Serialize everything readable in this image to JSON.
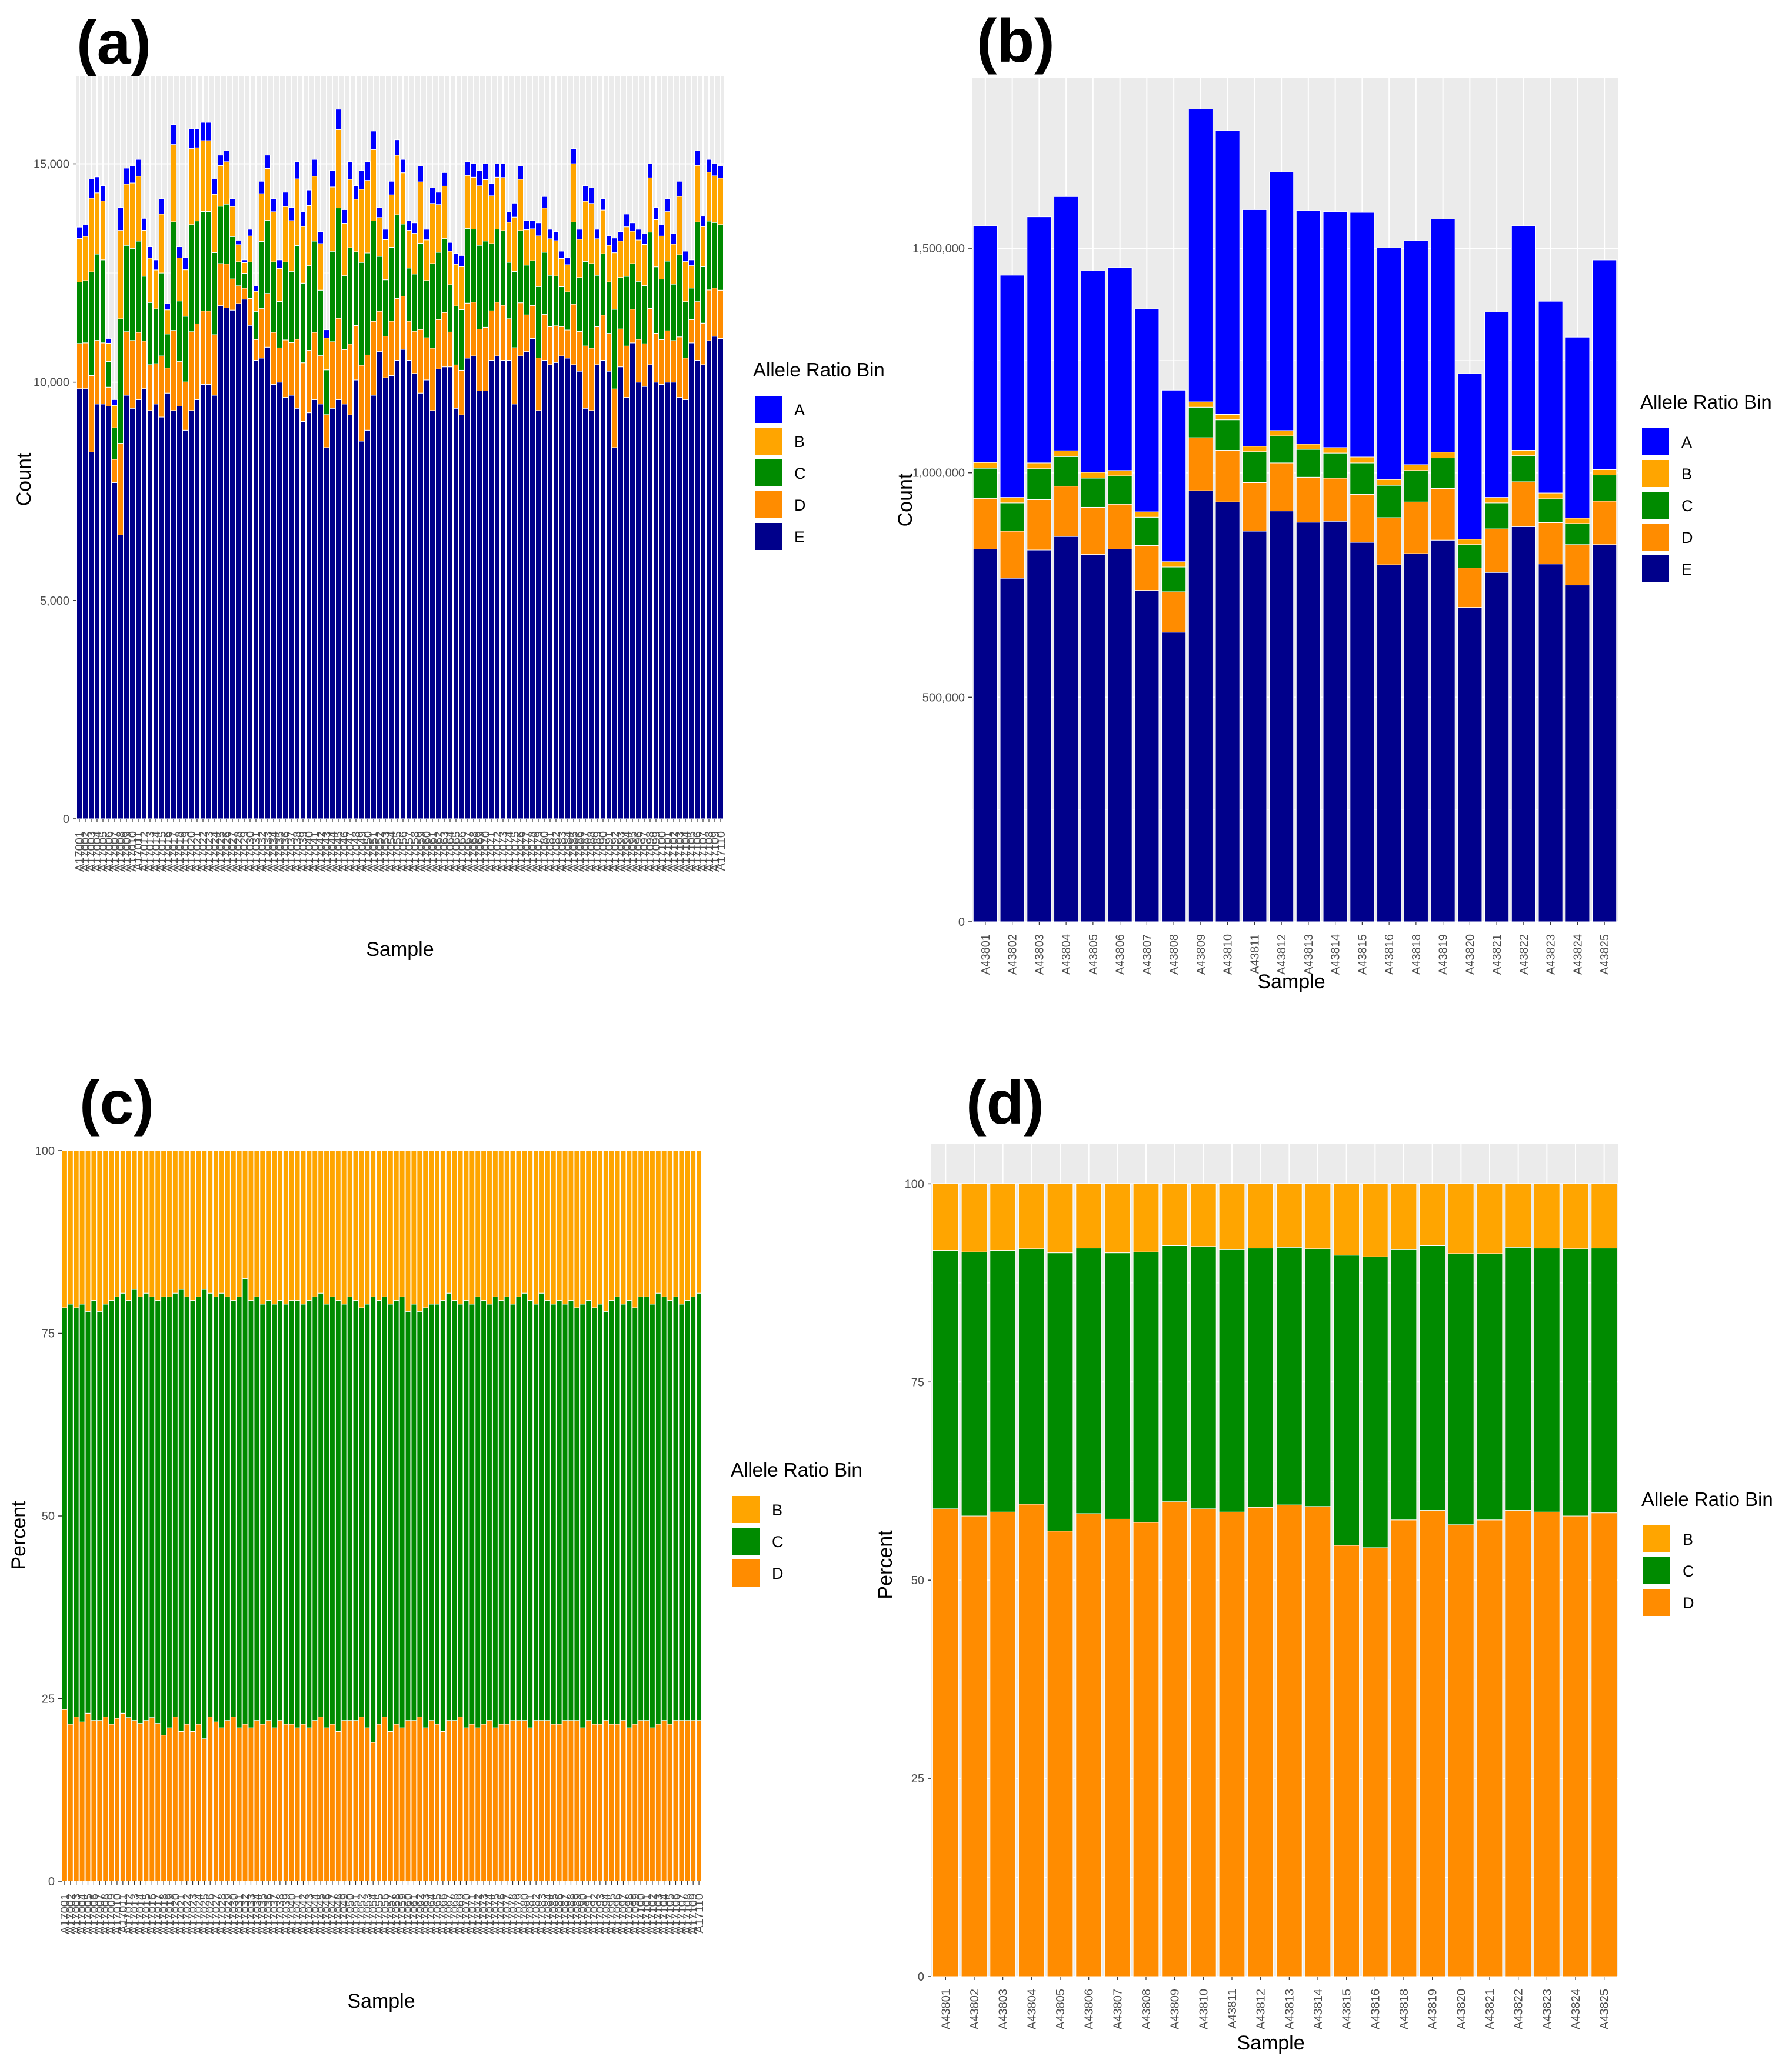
{
  "figure": {
    "colors": {
      "A": "#0000ff",
      "B": "#ffa500",
      "C": "#008b00",
      "D": "#ff8c00",
      "E": "#00008b"
    }
  },
  "chart_data": [
    {
      "id": "a",
      "panel_label": "(a)",
      "type": "bar",
      "stacked": true,
      "xlabel": "Sample",
      "ylabel": "Count",
      "ylim": [
        0,
        17000
      ],
      "yticks": [
        0,
        5000,
        10000,
        15000
      ],
      "ytick_labels": [
        "0",
        "5,000",
        "10,000",
        "15,000"
      ],
      "legend_title": "Allele Ratio Bin",
      "legend": [
        "A",
        "B",
        "C",
        "D",
        "E"
      ],
      "n_samples": 110,
      "series_order": [
        "E",
        "D",
        "C",
        "B",
        "A"
      ],
      "totals": [
        13550,
        13600,
        14650,
        14700,
        14500,
        11000,
        9600,
        14000,
        14900,
        14950,
        15100,
        13750,
        13100,
        12800,
        14200,
        11800,
        15900,
        13100,
        12850,
        15800,
        15800,
        15950,
        15950,
        14650,
        15200,
        15300,
        14200,
        13250,
        12800,
        13500,
        12200,
        14600,
        15200,
        14200,
        12800,
        14350,
        14000,
        15050,
        13900,
        14400,
        15100,
        13450,
        11200,
        14850,
        16250,
        13950,
        15050,
        14500,
        14850,
        15050,
        15750,
        14000,
        13500,
        14600,
        15550,
        15100,
        13700,
        13650,
        14950,
        13500,
        14450,
        14350,
        14800,
        13200,
        12950,
        12900,
        15050,
        15000,
        14850,
        15000,
        14550,
        15000,
        15000,
        13900,
        14100,
        14950,
        13700,
        13700,
        13650,
        14250,
        13500,
        13450,
        13000,
        12850,
        15350,
        13500,
        14500,
        14450,
        13500,
        14200,
        13350,
        13300,
        13450,
        13850,
        13650,
        13500,
        13400,
        15000,
        14000,
        13600,
        14200,
        13400,
        14600,
        13000,
        12800,
        15300,
        13800,
        15100,
        15000,
        14950
      ],
      "e_values": [
        9850,
        9850,
        8400,
        9500,
        9500,
        9450,
        7700,
        6500,
        9700,
        9400,
        9600,
        9850,
        9350,
        9500,
        9200,
        9750,
        9350,
        9450,
        8900,
        9350,
        9600,
        9950,
        9950,
        9700,
        11750,
        11700,
        11650,
        11800,
        11900,
        11300,
        10500,
        10550,
        10800,
        9950,
        10000,
        9650,
        9700,
        9400,
        9100,
        9300,
        9600,
        9500,
        8500,
        9400,
        9600,
        9500,
        9250,
        10050,
        8650,
        8900,
        9700,
        10700,
        10100,
        10150,
        10500,
        10750,
        10500,
        10200,
        9750,
        10050,
        9350,
        10300,
        10350,
        10350,
        9400,
        9250,
        10550,
        10600,
        9800,
        9800,
        10500,
        10600,
        10500,
        10500,
        9500,
        10600,
        10700,
        11000,
        9350,
        10500,
        10400,
        10450,
        10600,
        10550,
        10400,
        10250,
        9400,
        9350,
        10400,
        10500,
        10250,
        8500,
        10350,
        9650,
        10900,
        10000,
        9900,
        10400,
        10000,
        9950,
        10000,
        10000,
        9650,
        9600,
        10900,
        10500,
        10400,
        10950,
        11050,
        11000
      ],
      "categories": [
        "A17001",
        "A17002",
        "A17003",
        "A17004",
        "A17005",
        "A17006",
        "A17007",
        "A17008",
        "A17009",
        "A17010",
        "A17011",
        "A17012",
        "A17013",
        "A17014",
        "A17015",
        "A17016",
        "A17017",
        "A17018",
        "A17019",
        "A17020",
        "A17021",
        "A17022",
        "A17023",
        "A17024",
        "A17025",
        "A17026",
        "A17027",
        "A17028",
        "A17029",
        "A17030",
        "A17031",
        "A17032",
        "A17033",
        "A17034",
        "A17035",
        "A17036",
        "A17037",
        "A17038",
        "A17039",
        "A17040",
        "A17041",
        "A17042",
        "A17043",
        "A17044",
        "A17045",
        "A17046",
        "A17047",
        "A17048",
        "A17049",
        "A17050",
        "A17051",
        "A17052",
        "A17053",
        "A17054",
        "A17055",
        "A17056",
        "A17057",
        "A17058",
        "A17059",
        "A17060",
        "A17061",
        "A17062",
        "A17063",
        "A17064",
        "A17065",
        "A17066",
        "A17067",
        "A17068",
        "A17069",
        "A17070",
        "A17071",
        "A17072",
        "A17073",
        "A17074",
        "A17075",
        "A17076",
        "A17077",
        "A17078",
        "A17079",
        "A17080",
        "A17081",
        "A17082",
        "A17083",
        "A17084",
        "A17085",
        "A17086",
        "A17087",
        "A17088",
        "A17089",
        "A17090",
        "A17091",
        "A17092",
        "A17093",
        "A17094",
        "A17095",
        "A17096",
        "A17097",
        "A17098",
        "A17099",
        "A17100",
        "A17101",
        "A17102",
        "A17103",
        "A17104",
        "A17105",
        "A17106",
        "A17107",
        "A17108",
        "A17109",
        "A17110"
      ]
    },
    {
      "id": "b",
      "panel_label": "(b)",
      "type": "bar",
      "stacked": true,
      "xlabel": "Sample",
      "ylabel": "Count",
      "ylim": [
        0,
        1880000
      ],
      "yticks": [
        0,
        500000,
        1000000,
        1500000
      ],
      "ytick_labels": [
        "0",
        "500,000",
        "1,000,000",
        "1,500,000"
      ],
      "legend_title": "Allele Ratio Bin",
      "legend": [
        "A",
        "B",
        "C",
        "D",
        "E"
      ],
      "categories": [
        "A43801",
        "A43802",
        "A43803",
        "A43804",
        "A43805",
        "A43806",
        "A43807",
        "A43808",
        "A43809",
        "A43810",
        "A43811",
        "A43812",
        "A43813",
        "A43814",
        "A43815",
        "A43816",
        "A43818",
        "A43819",
        "A43820",
        "A43821",
        "A43822",
        "A43823",
        "A43824",
        "A43825"
      ],
      "series": [
        {
          "name": "E",
          "values": [
            830000,
            765000,
            828000,
            858000,
            818000,
            830000,
            738000,
            645000,
            960000,
            935000,
            870000,
            915000,
            890000,
            892000,
            845000,
            795000,
            820000,
            850000,
            700000,
            778000,
            880000,
            797000,
            750000,
            840000
          ]
        },
        {
          "name": "D",
          "values": [
            113000,
            105000,
            112000,
            112000,
            105000,
            100000,
            100000,
            90000,
            118000,
            115000,
            108000,
            107000,
            100000,
            96000,
            107000,
            105000,
            115000,
            115000,
            88000,
            97000,
            100000,
            92000,
            90000,
            97000
          ]
        },
        {
          "name": "C",
          "values": [
            67000,
            63000,
            69000,
            66000,
            65000,
            63000,
            63000,
            55000,
            68000,
            68000,
            69000,
            60000,
            62000,
            56000,
            70000,
            72000,
            70000,
            68000,
            52000,
            58000,
            58000,
            53000,
            47000,
            58000
          ]
        },
        {
          "name": "B",
          "values": [
            13000,
            12000,
            13000,
            13000,
            13000,
            12000,
            12000,
            12000,
            12000,
            12000,
            12000,
            12000,
            12000,
            12000,
            13000,
            13000,
            13000,
            13000,
            12000,
            12000,
            12000,
            13000,
            12000,
            12000
          ]
        },
        {
          "name": "A",
          "values": [
            527000,
            495000,
            548000,
            566000,
            449000,
            452000,
            452000,
            382000,
            652000,
            632000,
            527000,
            576000,
            520000,
            526000,
            545000,
            516000,
            499000,
            519000,
            369000,
            413000,
            500000,
            427000,
            403000,
            467000
          ]
        }
      ]
    },
    {
      "id": "c",
      "panel_label": "(c)",
      "type": "bar",
      "stacked": true,
      "xlabel": "Sample",
      "ylabel": "Percent",
      "ylim": [
        0,
        100
      ],
      "yticks": [
        0,
        25,
        50,
        75,
        100
      ],
      "ytick_labels": [
        "0",
        "25",
        "50",
        "75",
        "100"
      ],
      "legend_title": "Allele Ratio Bin",
      "legend": [
        "B",
        "C",
        "D"
      ],
      "n_samples": 110,
      "series_order": [
        "D",
        "C",
        "B"
      ],
      "d_values": [
        23.5,
        21.5,
        22.5,
        21.8,
        23.0,
        22.0,
        22.0,
        22.5,
        21.5,
        22.3,
        23.0,
        22.4,
        22.0,
        21.6,
        22.0,
        22.4,
        21.6,
        20.0,
        21.0,
        22.5,
        20.5,
        21.5,
        20.5,
        21.5,
        19.5,
        22.5,
        21.8,
        21.0,
        22.0,
        22.5,
        21.0,
        21.5,
        21.0,
        22.0,
        21.5,
        22.0,
        21.0,
        22.0,
        21.5,
        21.5,
        21.0,
        21.5,
        21.0,
        22.0,
        22.5,
        21.0,
        21.5,
        20.5,
        22.0,
        22.0,
        22.0,
        22.5,
        21.0,
        19.0,
        21.5,
        22.5,
        20.5,
        21.5,
        21.0,
        22.0,
        22.0,
        22.5,
        21.0,
        22.0,
        21.5,
        20.5,
        22.0,
        22.0,
        22.5,
        21.0,
        21.5,
        21.0,
        21.5,
        22.0,
        21.0,
        21.5,
        21.5,
        22.0,
        22.0,
        22.0,
        21.0,
        22.0,
        22.0,
        22.0,
        21.5,
        21.5,
        22.0,
        22.0,
        22.0,
        21.0,
        22.0,
        21.5,
        21.5,
        22.0,
        21.5,
        21.5,
        22.0,
        21.0,
        21.5,
        22.0,
        22.0,
        21.0,
        21.5,
        22.0,
        21.5,
        22.0,
        22.0,
        22.0,
        22.0,
        22.0
      ],
      "cd_values": [
        78.5,
        79.0,
        78.5,
        79.0,
        78.0,
        79.5,
        78.0,
        79.0,
        79.5,
        80.0,
        80.5,
        79.5,
        81.0,
        80.0,
        80.5,
        80.0,
        79.5,
        80.0,
        80.0,
        80.5,
        81.0,
        80.0,
        79.5,
        80.0,
        81.0,
        80.5,
        80.0,
        80.5,
        80.0,
        79.5,
        80.0,
        82.5,
        79.5,
        80.0,
        79.0,
        79.5,
        79.0,
        79.5,
        79.0,
        79.5,
        79.5,
        79.0,
        79.5,
        80.0,
        80.5,
        79.0,
        80.0,
        79.5,
        79.0,
        80.0,
        79.5,
        78.5,
        79.0,
        80.0,
        79.5,
        80.0,
        79.0,
        79.5,
        80.0,
        78.0,
        79.0,
        78.0,
        78.5,
        79.0,
        79.0,
        79.5,
        80.5,
        79.5,
        79.0,
        79.5,
        79.0,
        80.0,
        79.5,
        79.0,
        80.0,
        79.5,
        80.0,
        79.0,
        80.0,
        80.5,
        79.5,
        79.0,
        80.5,
        79.5,
        79.0,
        79.5,
        79.0,
        79.5,
        78.5,
        79.0,
        79.5,
        78.5,
        79.0,
        78.0,
        79.5,
        80.0,
        79.0,
        79.5,
        78.5,
        80.0,
        80.0,
        79.0,
        80.5,
        80.0,
        79.5,
        80.0,
        79.0,
        79.5,
        80.0,
        80.5
      ],
      "categories": [
        "A17001",
        "A17002",
        "A17003",
        "A17004",
        "A17005",
        "A17006",
        "A17007",
        "A17008",
        "A17009",
        "A17010",
        "A17011",
        "A17012",
        "A17013",
        "A17014",
        "A17015",
        "A17016",
        "A17017",
        "A17018",
        "A17019",
        "A17020",
        "A17021",
        "A17022",
        "A17023",
        "A17024",
        "A17025",
        "A17026",
        "A17027",
        "A17028",
        "A17029",
        "A17030",
        "A17031",
        "A17032",
        "A17033",
        "A17034",
        "A17035",
        "A17036",
        "A17037",
        "A17038",
        "A17039",
        "A17040",
        "A17041",
        "A17042",
        "A17043",
        "A17044",
        "A17045",
        "A17046",
        "A17047",
        "A17048",
        "A17049",
        "A17050",
        "A17051",
        "A17052",
        "A17053",
        "A17054",
        "A17055",
        "A17056",
        "A17057",
        "A17058",
        "A17059",
        "A17060",
        "A17061",
        "A17062",
        "A17063",
        "A17064",
        "A17065",
        "A17066",
        "A17067",
        "A17068",
        "A17069",
        "A17070",
        "A17071",
        "A17072",
        "A17073",
        "A17074",
        "A17075",
        "A17076",
        "A17077",
        "A17078",
        "A17079",
        "A17080",
        "A17081",
        "A17082",
        "A17083",
        "A17084",
        "A17085",
        "A17086",
        "A17087",
        "A17088",
        "A17089",
        "A17090",
        "A17091",
        "A17092",
        "A17093",
        "A17094",
        "A17095",
        "A17096",
        "A17097",
        "A17098",
        "A17099",
        "A17100",
        "A17101",
        "A17102",
        "A17103",
        "A17104",
        "A17105",
        "A17106",
        "A17107",
        "A17108",
        "A17109",
        "A17110"
      ]
    },
    {
      "id": "d",
      "panel_label": "(d)",
      "type": "bar",
      "stacked": true,
      "xlabel": "Sample",
      "ylabel": "Percent",
      "ylim": [
        0,
        105
      ],
      "yticks": [
        0,
        25,
        50,
        75,
        100
      ],
      "ytick_labels": [
        "0",
        "25",
        "50",
        "75",
        "100"
      ],
      "legend_title": "Allele Ratio Bin",
      "legend": [
        "B",
        "C",
        "D"
      ],
      "categories": [
        "A43801",
        "A43802",
        "A43803",
        "A43804",
        "A43805",
        "A43806",
        "A43807",
        "A43808",
        "A43809",
        "A43810",
        "A43811",
        "A43812",
        "A43813",
        "A43814",
        "A43815",
        "A43816",
        "A43818",
        "A43819",
        "A43820",
        "A43821",
        "A43822",
        "A43823",
        "A43824",
        "A43825"
      ],
      "series": [
        {
          "name": "D",
          "values": [
            59.0,
            58.1,
            58.6,
            59.6,
            56.2,
            58.4,
            57.7,
            57.3,
            59.9,
            59.0,
            58.6,
            59.2,
            59.5,
            59.3,
            54.4,
            54.1,
            57.6,
            58.8,
            57.0,
            57.6,
            58.8,
            58.6,
            58.1,
            58.5
          ]
        },
        {
          "name": "C",
          "values": [
            32.6,
            33.3,
            33.0,
            32.2,
            35.1,
            33.5,
            33.6,
            34.1,
            32.3,
            33.1,
            33.1,
            32.7,
            32.5,
            32.5,
            36.6,
            36.7,
            34.1,
            33.4,
            34.2,
            33.6,
            33.2,
            33.3,
            33.7,
            33.4
          ]
        },
        {
          "name": "B",
          "values": [
            8.4,
            8.6,
            8.4,
            8.2,
            8.7,
            8.1,
            8.7,
            8.6,
            7.8,
            7.9,
            8.3,
            8.1,
            8.0,
            8.2,
            9.0,
            9.2,
            8.3,
            7.8,
            8.8,
            8.8,
            8.0,
            8.1,
            8.2,
            8.1
          ]
        }
      ]
    }
  ]
}
